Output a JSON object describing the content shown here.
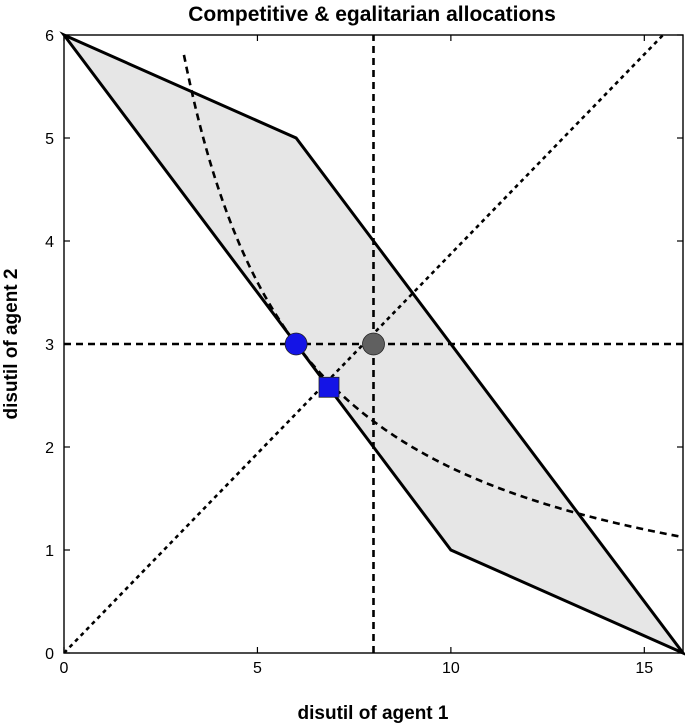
{
  "chart_data": {
    "type": "line",
    "title": "Competitive & egalitarian allocations",
    "xlabel": "disutil of agent 1",
    "ylabel": "disutil of agent 2",
    "xlim": [
      0,
      16
    ],
    "ylim": [
      0,
      6
    ],
    "xticks": [
      0,
      5,
      10,
      15
    ],
    "yticks": [
      0,
      1,
      2,
      3,
      4,
      5,
      6
    ],
    "grid": false,
    "feasible_region": {
      "fill": "#e6e6e6",
      "stroke": "#000000",
      "vertices": [
        [
          0,
          6
        ],
        [
          6,
          5
        ],
        [
          16,
          0
        ],
        [
          10,
          1
        ]
      ]
    },
    "lines": [
      {
        "id": "diagonal",
        "style": "dotted",
        "color": "#000000",
        "points": [
          [
            0,
            0
          ],
          [
            16,
            6.2
          ]
        ]
      },
      {
        "id": "vertical-reference",
        "style": "dashed",
        "color": "#000000",
        "points": [
          [
            8,
            0
          ],
          [
            8,
            6
          ]
        ]
      },
      {
        "id": "horizontal-reference",
        "style": "dashed",
        "color": "#000000",
        "points": [
          [
            0,
            3
          ],
          [
            16,
            3
          ]
        ]
      }
    ],
    "curves": [
      {
        "id": "indifference-curve",
        "style": "dashed",
        "color": "#000000",
        "type": "hyperbola",
        "k": 18,
        "x_range": [
          3.1,
          15.9
        ]
      }
    ],
    "markers": [
      {
        "id": "competitive-allocation",
        "shape": "circle",
        "color": "#1414e6",
        "x": 6,
        "y": 3
      },
      {
        "id": "egalitarian-allocation",
        "shape": "square",
        "color": "#1414e6",
        "x": 6.85,
        "y": 2.58
      },
      {
        "id": "reference-point",
        "shape": "circle",
        "color": "#606060",
        "x": 8,
        "y": 3
      }
    ]
  }
}
